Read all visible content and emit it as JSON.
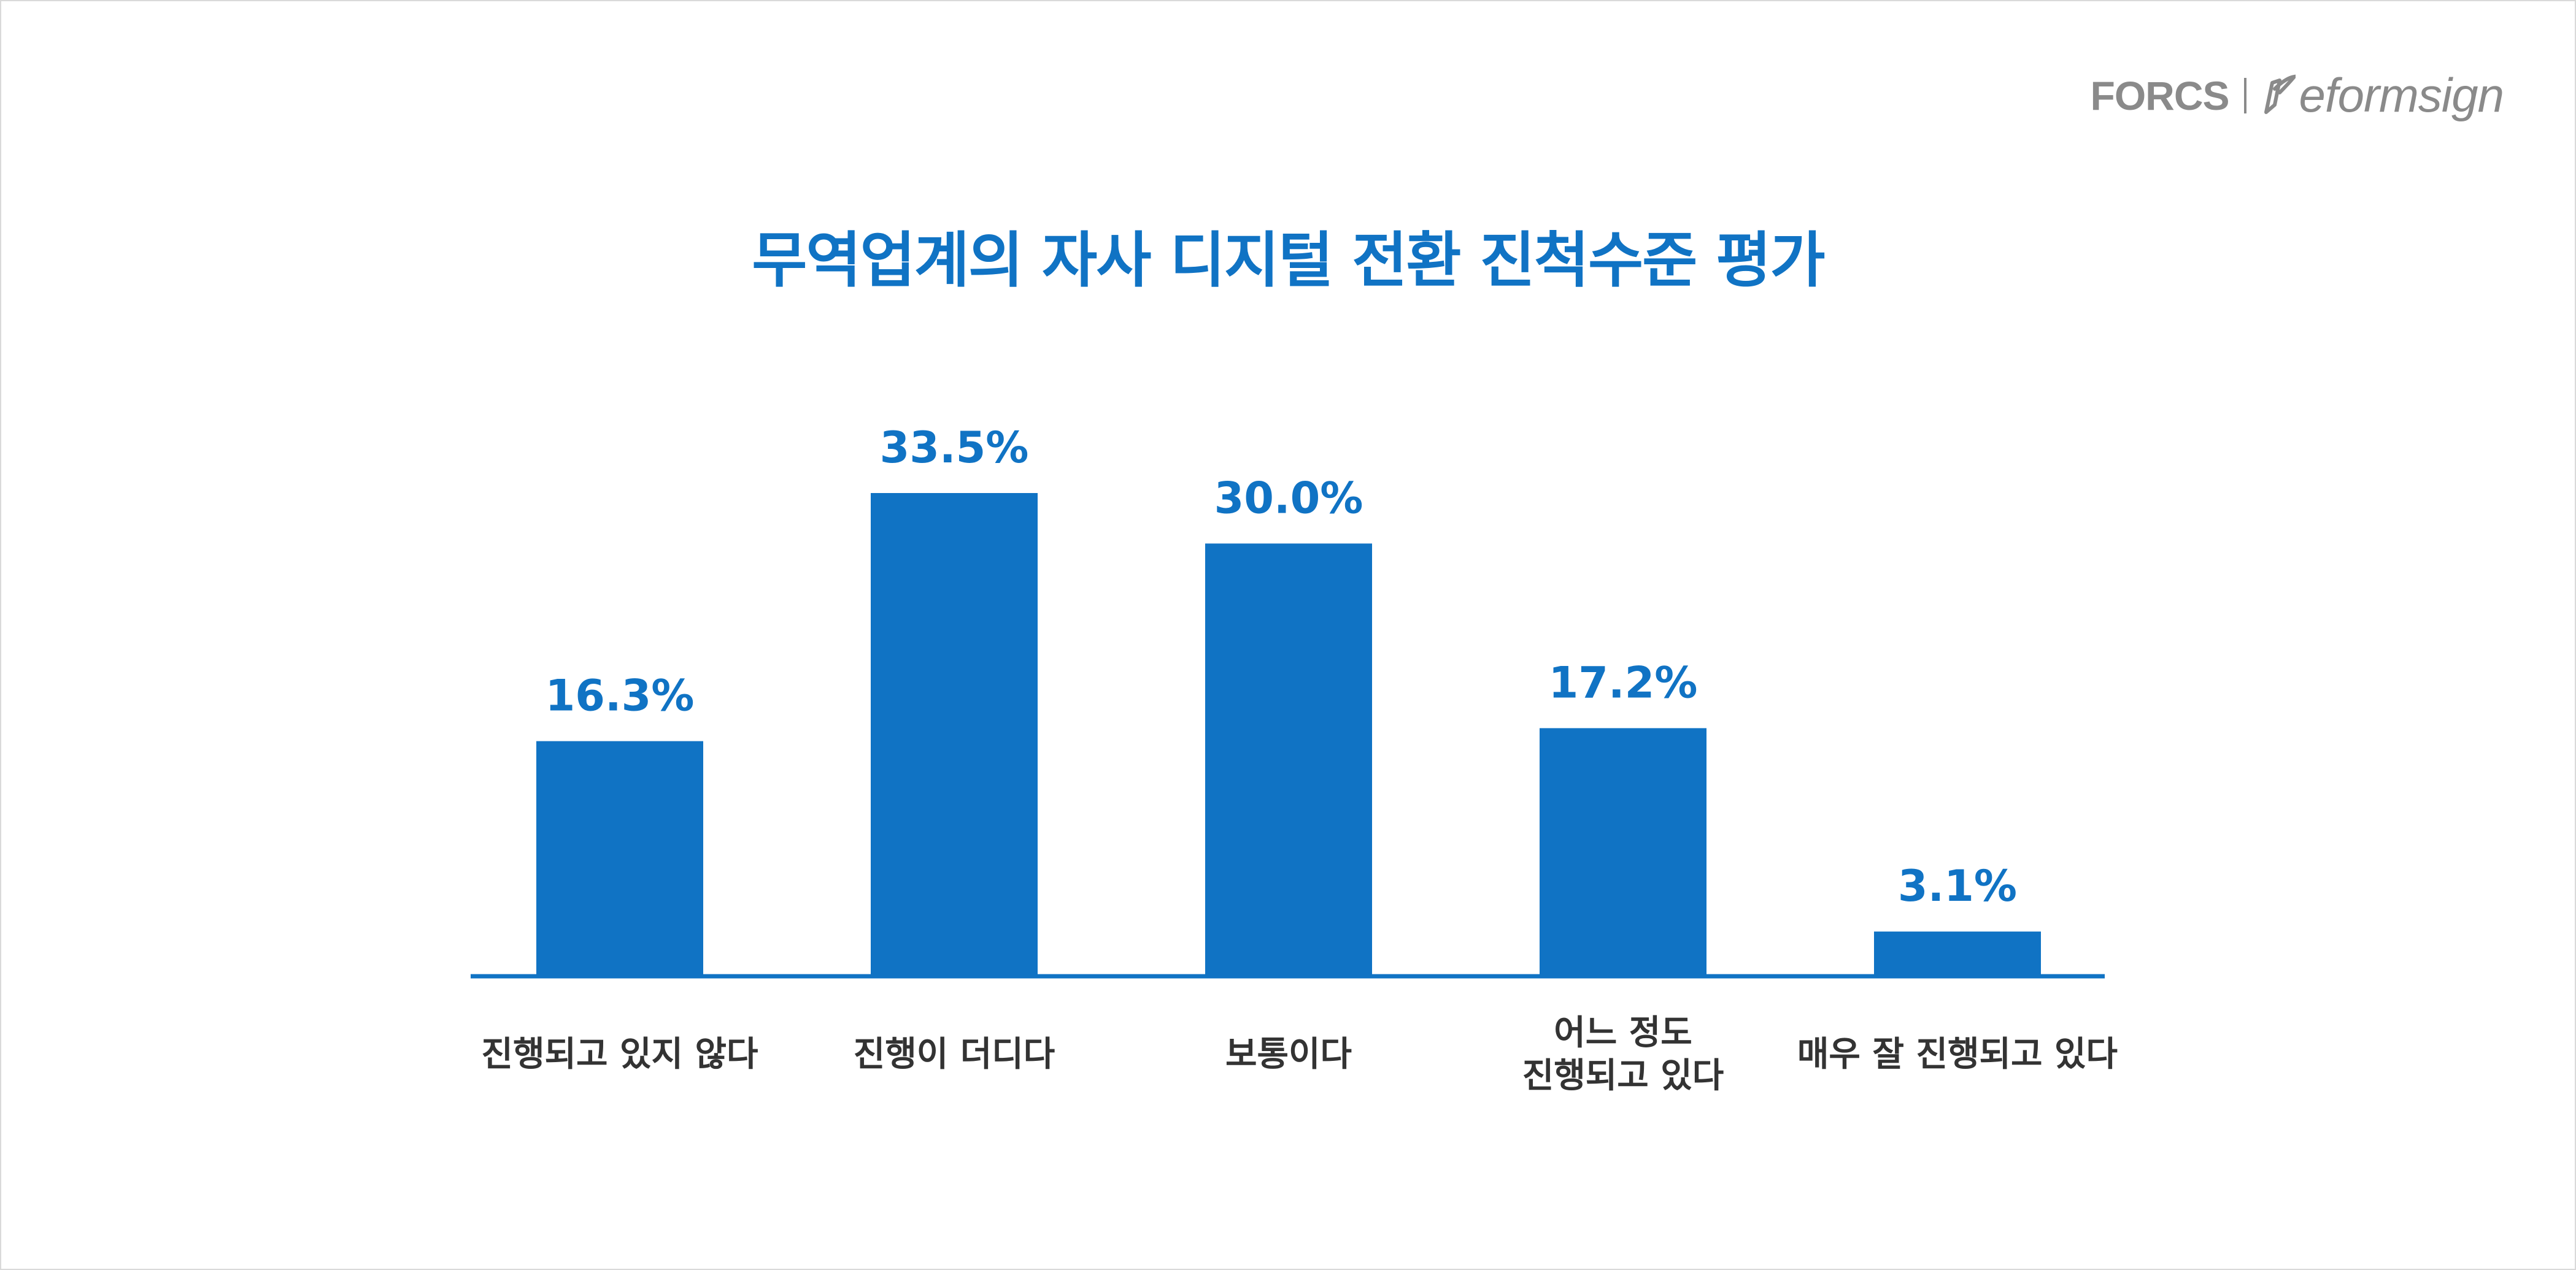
{
  "brand": {
    "logo_left": "FORCS",
    "logo_right": "eformsign",
    "logo_color": "#8a8a8a"
  },
  "colors": {
    "bar": "#1073c4",
    "title": "#1073c4",
    "value_label": "#1073c4",
    "category_label": "#333333",
    "baseline": "#1073c4"
  },
  "chart_data": {
    "type": "bar",
    "title": "무역업계의 자사 디지털 전환 진척수준 평가",
    "categories": [
      [
        "진행되고 있지 않다"
      ],
      [
        "진행이 더디다"
      ],
      [
        "보통이다"
      ],
      [
        "어느 정도",
        "진행되고 있다"
      ],
      [
        "매우 잘 진행되고 있다"
      ]
    ],
    "values": [
      16.3,
      33.5,
      30.0,
      17.2,
      3.1
    ],
    "value_labels": [
      "16.3%",
      "33.5%",
      "30.0%",
      "17.2%",
      "3.1%"
    ],
    "unit": "%",
    "ylim": [
      0,
      33.5
    ],
    "grid": false,
    "legend": "none"
  }
}
